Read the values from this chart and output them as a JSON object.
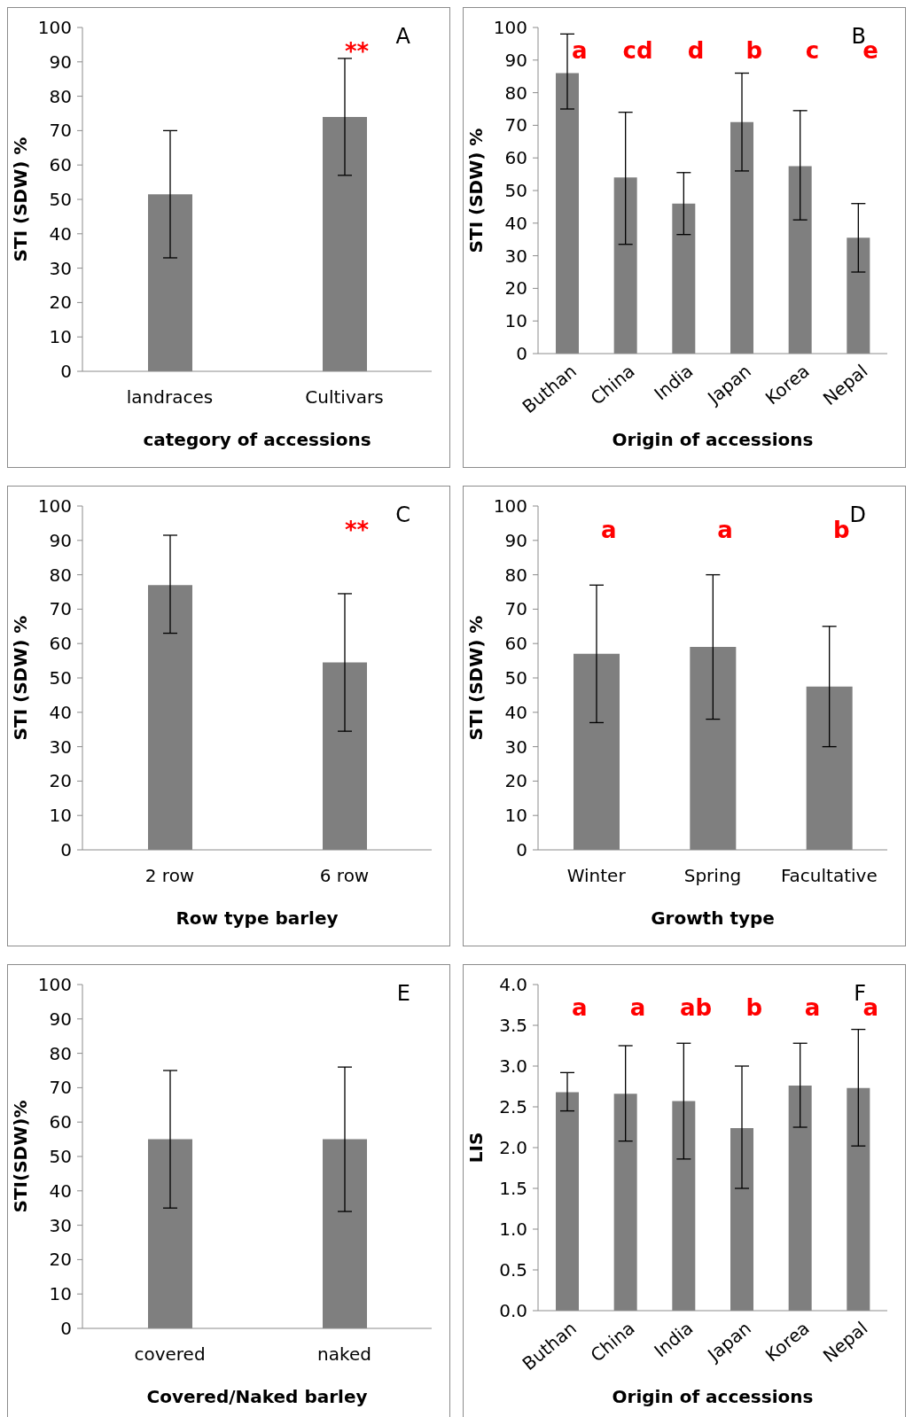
{
  "chart_data": [
    {
      "type": "bar",
      "xlabel": "category of accessions",
      "ylabel": "STI (SDW) %",
      "categories": [
        "landraces",
        "Cultivars"
      ],
      "values": [
        51.5,
        74
      ],
      "errors": [
        [
          33,
          70
        ],
        [
          57,
          91
        ]
      ],
      "color": "#7f7f7f",
      "ylim": [
        0,
        100
      ],
      "yticks": [
        0,
        10,
        20,
        30,
        40,
        50,
        60,
        70,
        80,
        90,
        100
      ],
      "grid": false,
      "legend": false,
      "annotations": [
        "A",
        "**"
      ]
    },
    {
      "type": "bar",
      "xlabel": "Origin of accessions",
      "ylabel": "STI (SDW) %",
      "categories": [
        "Buthan",
        "China",
        "India",
        "Japan",
        "Korea",
        "Nepal"
      ],
      "values": [
        86,
        54,
        46,
        71,
        57.5,
        35.5
      ],
      "errors": [
        [
          75,
          98
        ],
        [
          33.5,
          74
        ],
        [
          36.5,
          55.5
        ],
        [
          56,
          86
        ],
        [
          41,
          74.5
        ],
        [
          25,
          46
        ]
      ],
      "color": "#7f7f7f",
      "ylim": [
        0,
        100
      ],
      "yticks": [
        0,
        10,
        20,
        30,
        40,
        50,
        60,
        70,
        80,
        90,
        100
      ],
      "grid": false,
      "legend": false,
      "annotations": [
        "B",
        "a",
        "cd",
        "d",
        "b",
        "c",
        "e"
      ]
    },
    {
      "type": "bar",
      "xlabel": "Row type barley",
      "ylabel": "STI (SDW) %",
      "categories": [
        "2 row",
        "6 row"
      ],
      "values": [
        77,
        54.5
      ],
      "errors": [
        [
          63,
          91.5
        ],
        [
          34.5,
          74.5
        ]
      ],
      "color": "#7f7f7f",
      "ylim": [
        0,
        100
      ],
      "yticks": [
        0,
        10,
        20,
        30,
        40,
        50,
        60,
        70,
        80,
        90,
        100
      ],
      "grid": false,
      "legend": false,
      "annotations": [
        "C",
        "**"
      ]
    },
    {
      "type": "bar",
      "xlabel": "Growth type",
      "ylabel": "STI (SDW) %",
      "categories": [
        "Winter",
        "Spring",
        "Facultative"
      ],
      "values": [
        57,
        59,
        47.5
      ],
      "errors": [
        [
          37,
          77
        ],
        [
          38,
          80
        ],
        [
          30,
          65
        ]
      ],
      "color": "#7f7f7f",
      "ylim": [
        0,
        100
      ],
      "yticks": [
        0,
        10,
        20,
        30,
        40,
        50,
        60,
        70,
        80,
        90,
        100
      ],
      "grid": false,
      "legend": false,
      "annotations": [
        "D",
        "a",
        "a",
        "b"
      ]
    },
    {
      "type": "bar",
      "xlabel": "Covered/Naked barley",
      "ylabel": "STI(SDW)%",
      "categories": [
        "covered",
        "naked"
      ],
      "values": [
        55,
        55
      ],
      "errors": [
        [
          35,
          75
        ],
        [
          34,
          76
        ]
      ],
      "color": "#7f7f7f",
      "ylim": [
        0,
        100
      ],
      "yticks": [
        0,
        10,
        20,
        30,
        40,
        50,
        60,
        70,
        80,
        90,
        100
      ],
      "grid": false,
      "legend": false,
      "annotations": [
        "E"
      ]
    },
    {
      "type": "bar",
      "xlabel": "Origin of accessions",
      "ylabel": "LIS",
      "categories": [
        "Buthan",
        "China",
        "India",
        "Japan",
        "Korea",
        "Nepal"
      ],
      "values": [
        2.68,
        2.66,
        2.57,
        2.24,
        2.76,
        2.73
      ],
      "errors": [
        [
          2.45,
          2.92
        ],
        [
          2.08,
          3.25
        ],
        [
          1.86,
          3.28
        ],
        [
          1.5,
          3.0
        ],
        [
          2.25,
          3.28
        ],
        [
          2.02,
          3.45
        ]
      ],
      "color": "#7f7f7f",
      "ylim": [
        0,
        4
      ],
      "yticks": [
        {
          "value": 0,
          "label": "0.0"
        },
        {
          "value": 0.5,
          "label": "0.5"
        },
        {
          "value": 1,
          "label": "1.0"
        },
        {
          "value": 1.5,
          "label": "1.5"
        },
        {
          "value": 2,
          "label": "2.0"
        },
        {
          "value": 2.5,
          "label": "2.5"
        },
        {
          "value": 3,
          "label": "3.0"
        },
        {
          "value": 3.5,
          "label": "3.5"
        },
        {
          "value": 4,
          "label": "4.0"
        }
      ],
      "grid": false,
      "legend": false,
      "annotations": [
        "F",
        "a",
        "a",
        "ab",
        "b",
        "a",
        "a"
      ]
    }
  ]
}
